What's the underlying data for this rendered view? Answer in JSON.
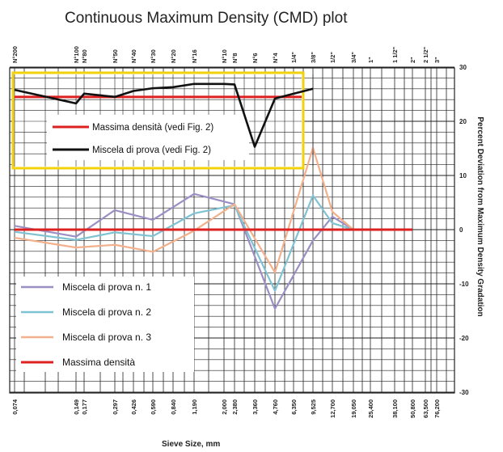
{
  "chart_data": {
    "type": "line",
    "title": "Continuous Maximum Density (CMD) plot",
    "xlabel": "Sieve Size, mm",
    "ylabel": "Percent Deviation from Maximum Density Gradation",
    "ylim": [
      -30,
      30
    ],
    "yticks": [
      30,
      20,
      10,
      0,
      -10,
      -20,
      -30
    ],
    "sieve_sizes_mm": [
      "0,074",
      "0,149",
      "0,177",
      "0,297",
      "0,426",
      "0,590",
      "0,840",
      "1,190",
      "2,000",
      "2,380",
      "3,360",
      "4,760",
      "6,350",
      "9,525",
      "12,700",
      "19,050",
      "25,400",
      "38,100",
      "50,800",
      "63,500",
      "76,200"
    ],
    "sieve_names": [
      "N°200",
      "N°100",
      "N°80",
      "N°50",
      "N°40",
      "N°30",
      "N°20",
      "N°16",
      "N°10",
      "N°8",
      "N°6",
      "N°4",
      "1/4\"",
      "3/8\"",
      "1/2\"",
      "3/4\"",
      "1\"",
      "1 1/2\"",
      "2\"",
      "2 1/2\"",
      "3\""
    ],
    "series": [
      {
        "name": "Miscela di prova n. 1",
        "color": "#9b8fc4",
        "x_index": [
          0,
          1,
          3,
          5,
          7,
          9,
          11,
          13,
          14,
          15
        ],
        "values": [
          0.7,
          -1.3,
          3.6,
          1.8,
          6.6,
          4.7,
          -14.6,
          -2.0,
          2.4,
          0
        ]
      },
      {
        "name": "Miscela di prova n. 2",
        "color": "#7fc2d2",
        "x_index": [
          0,
          1,
          3,
          5,
          7,
          9,
          11,
          13,
          14,
          15
        ],
        "values": [
          -0.4,
          -1.9,
          -0.5,
          -1.2,
          3.0,
          4.5,
          -11.3,
          6.3,
          1.2,
          0
        ]
      },
      {
        "name": "Miscela di prova n. 3",
        "color": "#f3b08c",
        "x_index": [
          0,
          1,
          3,
          5,
          7,
          9,
          11,
          13,
          14,
          15
        ],
        "values": [
          -1.5,
          -3.3,
          -2.8,
          -4.1,
          -0.2,
          4.7,
          -7.9,
          15.1,
          3.3,
          0
        ]
      },
      {
        "name": "Massima densità",
        "color": "#dd2020",
        "x_index": [
          0,
          18
        ],
        "values": [
          0,
          0
        ]
      }
    ]
  },
  "legend_lower": [
    "Miscela di prova n. 1",
    "Miscela di prova n. 2",
    "Miscela di prova n. 3",
    "Massima densità"
  ],
  "inset": {
    "legend": [
      "Massima densità (vedi Fig. 2)",
      "Miscela di prova (vedi Fig. 2)"
    ],
    "border_color": "#f2d20a",
    "red_line_value": 24.5,
    "black_series": {
      "x_index": [
        0,
        1,
        2,
        3,
        4,
        5,
        6,
        7,
        8,
        9,
        10,
        11,
        12,
        13
      ],
      "values": [
        25.8,
        23.3,
        25.1,
        24.5,
        25.6,
        26.1,
        26.3,
        26.9,
        26.9,
        26.8,
        15.3,
        24.2,
        25.1,
        26.0
      ]
    }
  }
}
